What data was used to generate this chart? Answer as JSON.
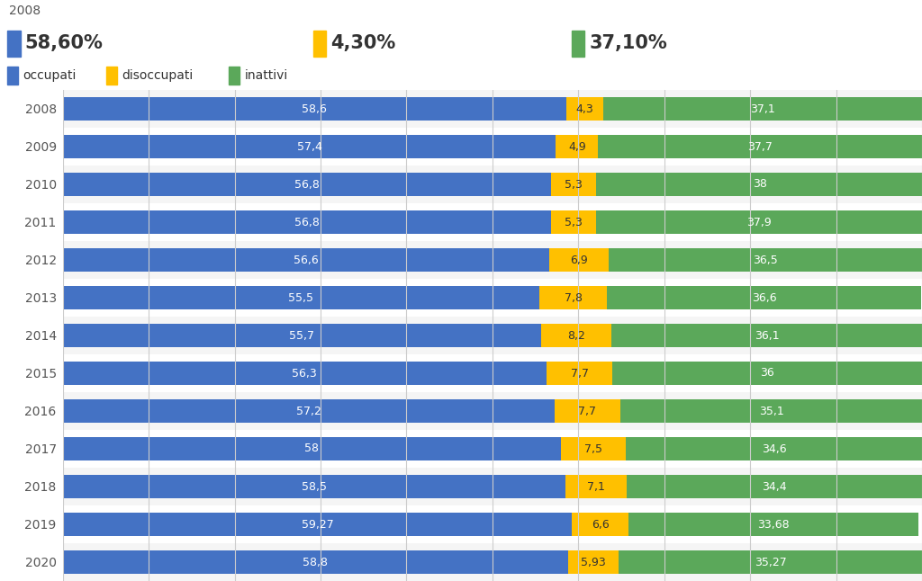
{
  "years": [
    2008,
    2009,
    2010,
    2011,
    2012,
    2013,
    2014,
    2015,
    2016,
    2017,
    2018,
    2019,
    2020
  ],
  "occupati": [
    58.6,
    57.4,
    56.8,
    56.8,
    56.6,
    55.5,
    55.7,
    56.3,
    57.2,
    58.0,
    58.5,
    59.27,
    58.8
  ],
  "disoccupati": [
    4.3,
    4.9,
    5.3,
    5.3,
    6.9,
    7.8,
    8.2,
    7.7,
    7.7,
    7.5,
    7.1,
    6.6,
    5.93
  ],
  "inattivi": [
    37.1,
    37.7,
    38.0,
    37.9,
    36.5,
    36.6,
    36.1,
    36.0,
    35.1,
    34.6,
    34.4,
    33.68,
    35.27
  ],
  "occ_labels": [
    "58,6",
    "57,4",
    "56,8",
    "56,8",
    "56,6",
    "55,5",
    "55,7",
    "56,3",
    "57,2",
    "58",
    "58,5",
    "59,27",
    "58,8"
  ],
  "dis_labels": [
    "4,3",
    "4,9",
    "5,3",
    "5,3",
    "6,9",
    "7,8",
    "8,2",
    "7,7",
    "7,7",
    "7,5",
    "7,1",
    "6,6",
    "5,93"
  ],
  "inat_labels": [
    "37,1",
    "37,7",
    "38",
    "37,9",
    "36,5",
    "36,6",
    "36,1",
    "36",
    "35,1",
    "34,6",
    "34,4",
    "33,68",
    "35,27"
  ],
  "color_occupati": "#4472C4",
  "color_disoccupati": "#FFC000",
  "color_inattivi": "#5BA85A",
  "header_year": "2008",
  "header_occ": "58,60%",
  "header_dis": "4,30%",
  "header_inat": "37,10%",
  "legend_occ": "occupati",
  "legend_dis": "disoccupati",
  "legend_inat": "inattivi",
  "bg_header": "#EBEBEB",
  "bg_row_odd": "#F5F5F5",
  "bg_row_even": "#FFFFFF",
  "bg_chart": "#FFFFFF",
  "bar_height": 0.6,
  "xlim": [
    0,
    100
  ],
  "xticks": [
    0,
    10,
    20,
    30,
    40,
    50,
    60,
    70,
    80,
    90,
    100
  ],
  "text_fontsize": 9,
  "label_fontsize": 10,
  "header_fontsize_year": 10,
  "header_fontsize_pct": 15
}
